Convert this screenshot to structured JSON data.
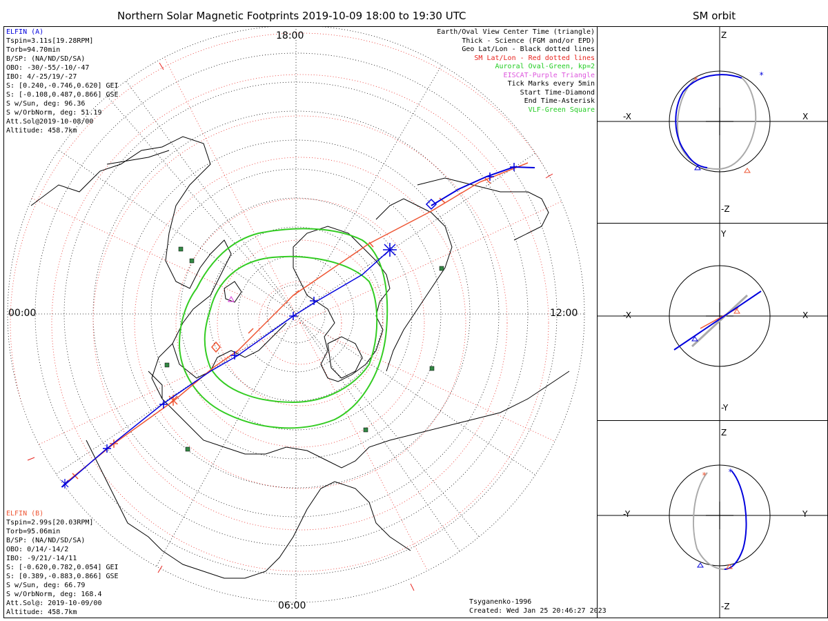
{
  "main_title": "Northern Solar Magnetic Footprints 2019-10-09 18:00 to 19:30 UTC",
  "side_title": "SM orbit",
  "hour_labels": {
    "top": "18:00",
    "left": "00:00",
    "right": "12:00",
    "bottom": "06:00"
  },
  "elfin_a": {
    "name": "ELFIN (A)",
    "lines": [
      "Tspin=3.11s[19.28RPM]",
      "Torb=94.70min",
      "B/SP: (NA/ND/SD/SA)",
      "OBO: -30/-55/-10/-47",
      "IBO: 4/-25/19/-27",
      "S: [0.240,-0.746,0.620] GEI",
      "S: [-0.108,0.487,0.866] GSE",
      "S w/Sun, deg: 96.36",
      "S w/OrbNorm, deg: 51.19",
      "Att.Sol@2019-10-08/00",
      "Altitude: 458.7km"
    ]
  },
  "elfin_b": {
    "name": "ELFIN (B)",
    "lines": [
      "Tspin=2.99s[20.03RPM]",
      "Torb=95.06min",
      "B/SP: (NA/ND/SD/SA)",
      "OBO: 0/14/-14/2",
      "IBO: -9/21/-14/11",
      "S: [-0.620,0.782,0.054] GEI",
      "S: [0.389,-0.883,0.866] GSE",
      "S w/Sun, deg: 66.79",
      "S w/OrbNorm, deg: 168.4",
      "Att.Sol@: 2019-10-09/00",
      "Altitude: 458.7km"
    ]
  },
  "legend": [
    {
      "text": "Earth/Oval View Center Time (triangle)",
      "color": "#000000"
    },
    {
      "text": "Thick - Science (FGM and/or EPD)",
      "color": "#000000"
    },
    {
      "text": "Geo Lat/Lon - Black dotted lines",
      "color": "#000000"
    },
    {
      "text": "SM Lat/Lon - Red dotted lines",
      "color": "#e8231e"
    },
    {
      "text": "Auroral Oval-Green, kp=2",
      "color": "#22cc22"
    },
    {
      "text": "EISCAT-Purple Triangle",
      "color": "#dd55dd"
    },
    {
      "text": "Tick Marks every 5min",
      "color": "#000000"
    },
    {
      "text": "Start Time-Diamond",
      "color": "#000000"
    },
    {
      "text": "End Time-Asterisk",
      "color": "#000000"
    },
    {
      "text": "VLF-Green Square",
      "color": "#22cc22"
    }
  ],
  "footer": {
    "model": "Tsyganenko-1996",
    "created": "Created: Wed Jan 25 20:46:27 2023"
  },
  "orbit_panels": [
    {
      "top": "Z",
      "bottom": "-Z",
      "left": "-X",
      "right": "X"
    },
    {
      "top": "Y",
      "bottom": "-Y",
      "left": "-X",
      "right": "X"
    },
    {
      "top": "Z",
      "bottom": "-Z",
      "left": "-Y",
      "right": "Y"
    }
  ],
  "colors": {
    "elfin_a": "#0000dd",
    "elfin_b": "#ee5533",
    "oval": "#33cc22",
    "grid_red": "#e8231e",
    "vlf": "#338844",
    "orbit_gray": "#aaaaaa"
  }
}
